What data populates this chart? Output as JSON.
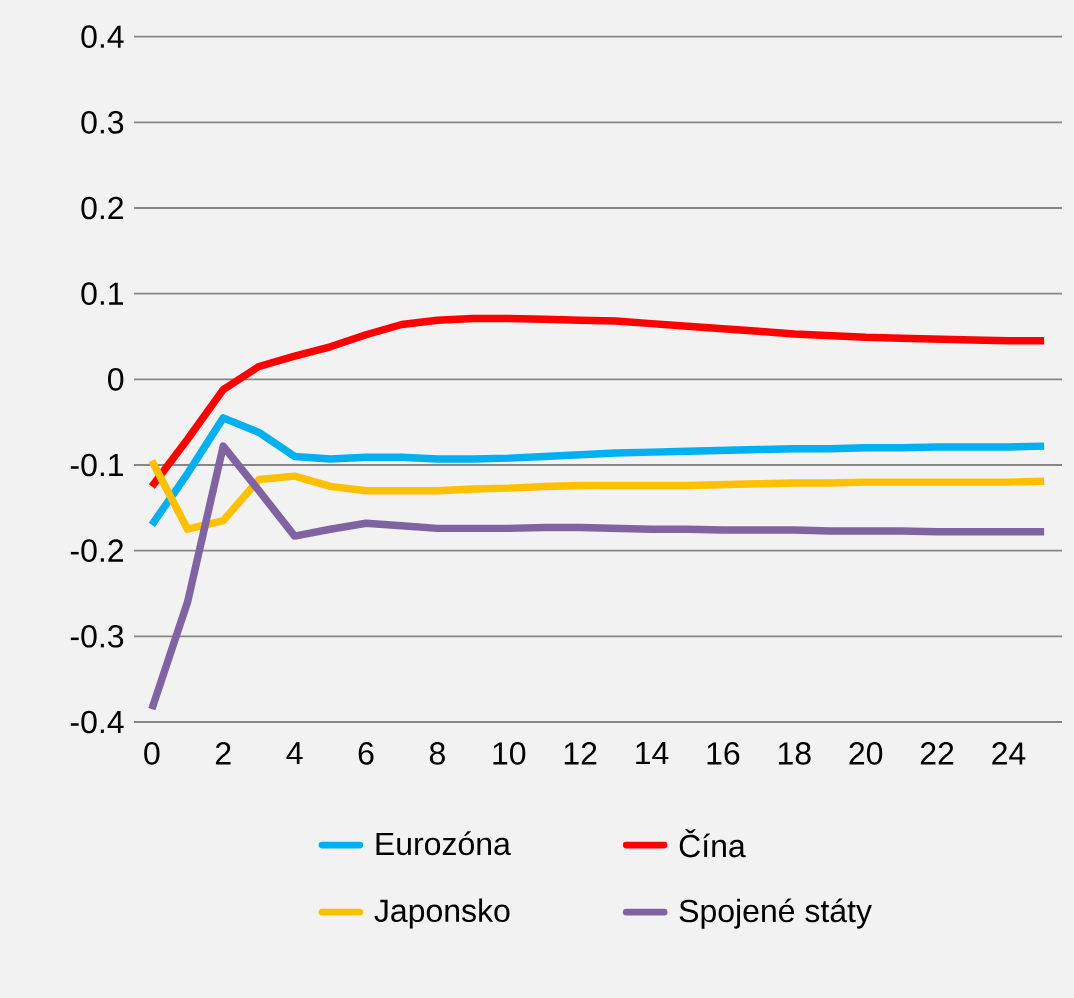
{
  "chart_data": {
    "type": "line",
    "x": [
      0,
      1,
      2,
      3,
      4,
      5,
      6,
      7,
      8,
      9,
      10,
      11,
      12,
      13,
      14,
      15,
      16,
      17,
      18,
      19,
      20,
      21,
      22,
      23,
      24,
      25
    ],
    "xlim": [
      -0.5,
      25.5
    ],
    "xticks": [
      0,
      2,
      4,
      6,
      8,
      10,
      12,
      14,
      16,
      18,
      20,
      22,
      24
    ],
    "ylim": [
      -0.4,
      0.4
    ],
    "yticks": [
      -0.4,
      -0.3,
      -0.2,
      -0.1,
      0,
      0.1,
      0.2,
      0.3,
      0.4
    ],
    "grid": "y",
    "legend": "bottom",
    "marker": "none",
    "line_style": "solid",
    "series": [
      {
        "name": "Eurozóna",
        "color": "#00b0f0",
        "values": [
          -0.17,
          -0.11,
          -0.045,
          -0.062,
          -0.09,
          -0.093,
          -0.091,
          -0.091,
          -0.093,
          -0.093,
          -0.092,
          -0.09,
          -0.088,
          -0.086,
          -0.085,
          -0.084,
          -0.083,
          -0.082,
          -0.081,
          -0.081,
          -0.08,
          -0.08,
          -0.079,
          -0.079,
          -0.079,
          -0.078
        ]
      },
      {
        "name": "Čína",
        "color": "#ff0000",
        "values": [
          -0.125,
          -0.07,
          -0.012,
          0.015,
          0.027,
          0.038,
          0.052,
          0.064,
          0.069,
          0.071,
          0.071,
          0.07,
          0.069,
          0.068,
          0.065,
          0.062,
          0.059,
          0.056,
          0.053,
          0.051,
          0.049,
          0.048,
          0.047,
          0.046,
          0.045,
          0.045
        ]
      },
      {
        "name": "Japonsko",
        "color": "#ffc000",
        "values": [
          -0.095,
          -0.175,
          -0.165,
          -0.117,
          -0.113,
          -0.125,
          -0.13,
          -0.13,
          -0.13,
          -0.128,
          -0.127,
          -0.125,
          -0.124,
          -0.124,
          -0.124,
          -0.124,
          -0.123,
          -0.122,
          -0.121,
          -0.121,
          -0.12,
          -0.12,
          -0.12,
          -0.12,
          -0.12,
          -0.119
        ]
      },
      {
        "name": "Spojené státy",
        "color": "#8064a2",
        "values": [
          -0.385,
          -0.26,
          -0.078,
          -0.13,
          -0.183,
          -0.175,
          -0.168,
          -0.171,
          -0.174,
          -0.174,
          -0.174,
          -0.173,
          -0.173,
          -0.174,
          -0.175,
          -0.175,
          -0.176,
          -0.176,
          -0.176,
          -0.177,
          -0.177,
          -0.177,
          -0.178,
          -0.178,
          -0.178,
          -0.178
        ]
      }
    ]
  }
}
